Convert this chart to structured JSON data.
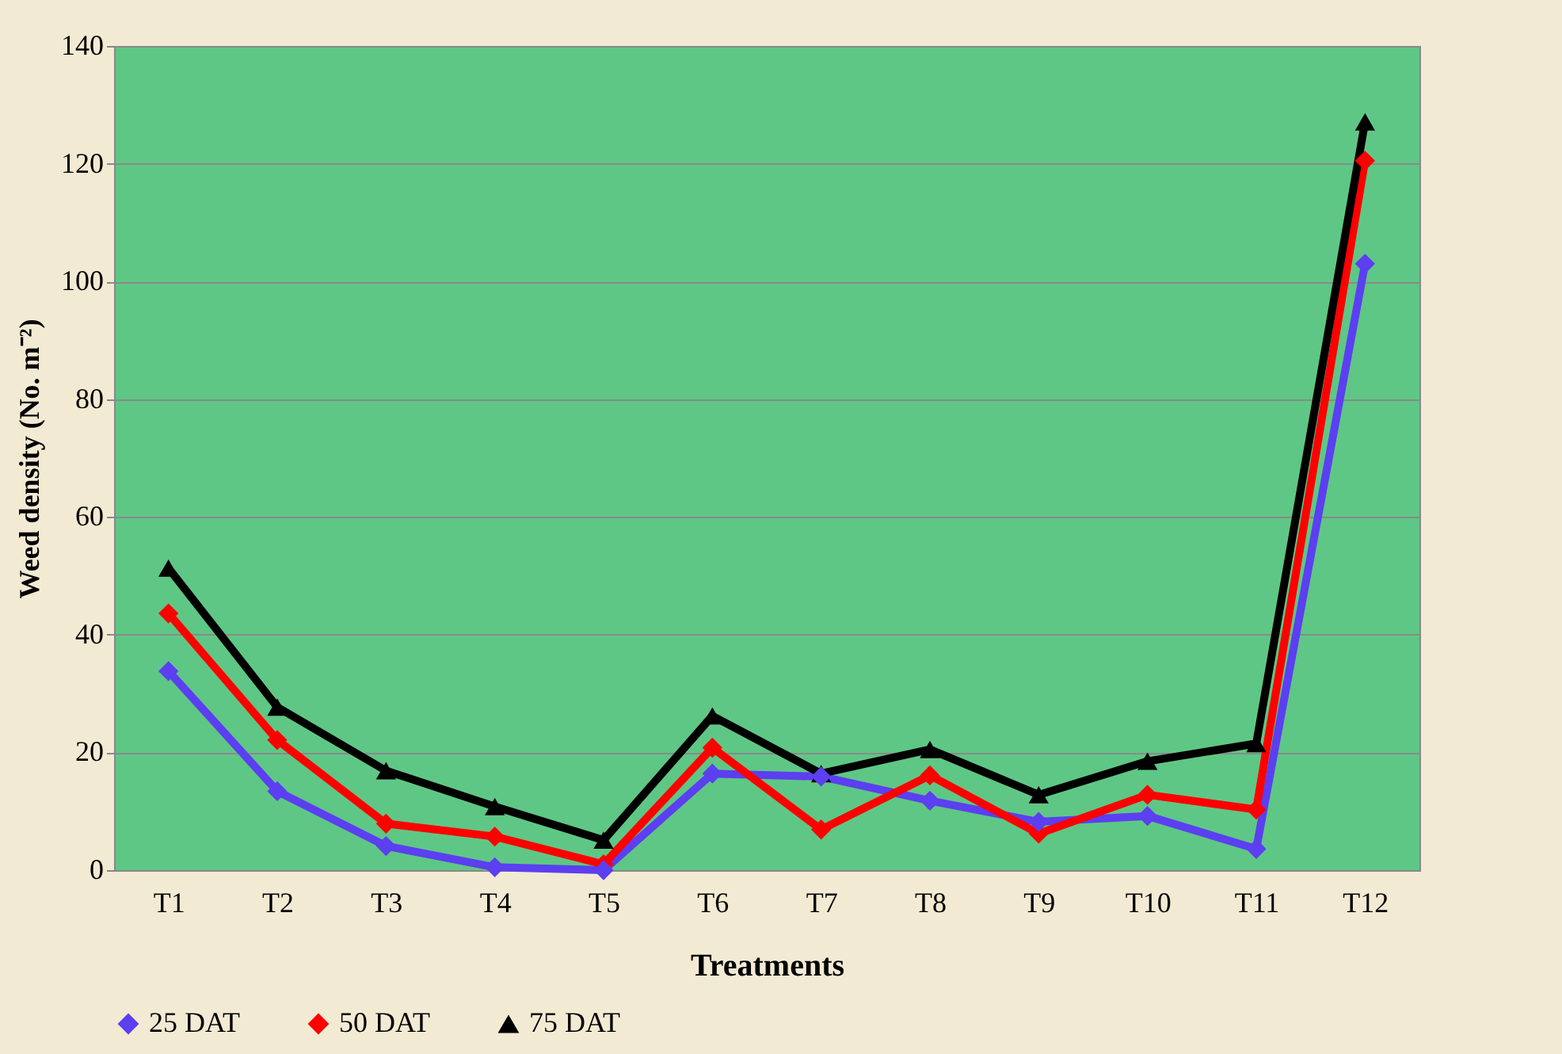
{
  "chart_data": {
    "type": "line",
    "xlabel": "Treatments",
    "ylabel": "Weed density (No. m⁻²)",
    "categories": [
      "T1",
      "T2",
      "T3",
      "T4",
      "T5",
      "T6",
      "T7",
      "T8",
      "T9",
      "T10",
      "T11",
      "T12"
    ],
    "series": [
      {
        "name": "25 DAT",
        "color": "#5b3ff0",
        "marker": "diamond",
        "values": [
          33.8,
          13.4,
          4.1,
          0.5,
          0,
          16.4,
          15.9,
          11.8,
          8.2,
          9.2,
          3.6,
          103
        ]
      },
      {
        "name": "50 DAT",
        "color": "#ff0000",
        "marker": "diamond",
        "values": [
          43.6,
          22.1,
          7.9,
          5.7,
          1.0,
          20.8,
          6.9,
          16.1,
          6.2,
          12.8,
          10.3,
          120.5
        ]
      },
      {
        "name": "75 DAT",
        "color": "#000000",
        "marker": "triangle",
        "values": [
          51.3,
          27.7,
          16.9,
          10.8,
          5.1,
          26.2,
          16.4,
          20.5,
          12.8,
          18.5,
          21.5,
          127.1
        ]
      }
    ],
    "ylim": [
      0,
      140
    ],
    "yticks": [
      0,
      20,
      40,
      60,
      80,
      100,
      120,
      140
    ],
    "grid": "y",
    "legend": "bottom",
    "line_style": "solid"
  }
}
